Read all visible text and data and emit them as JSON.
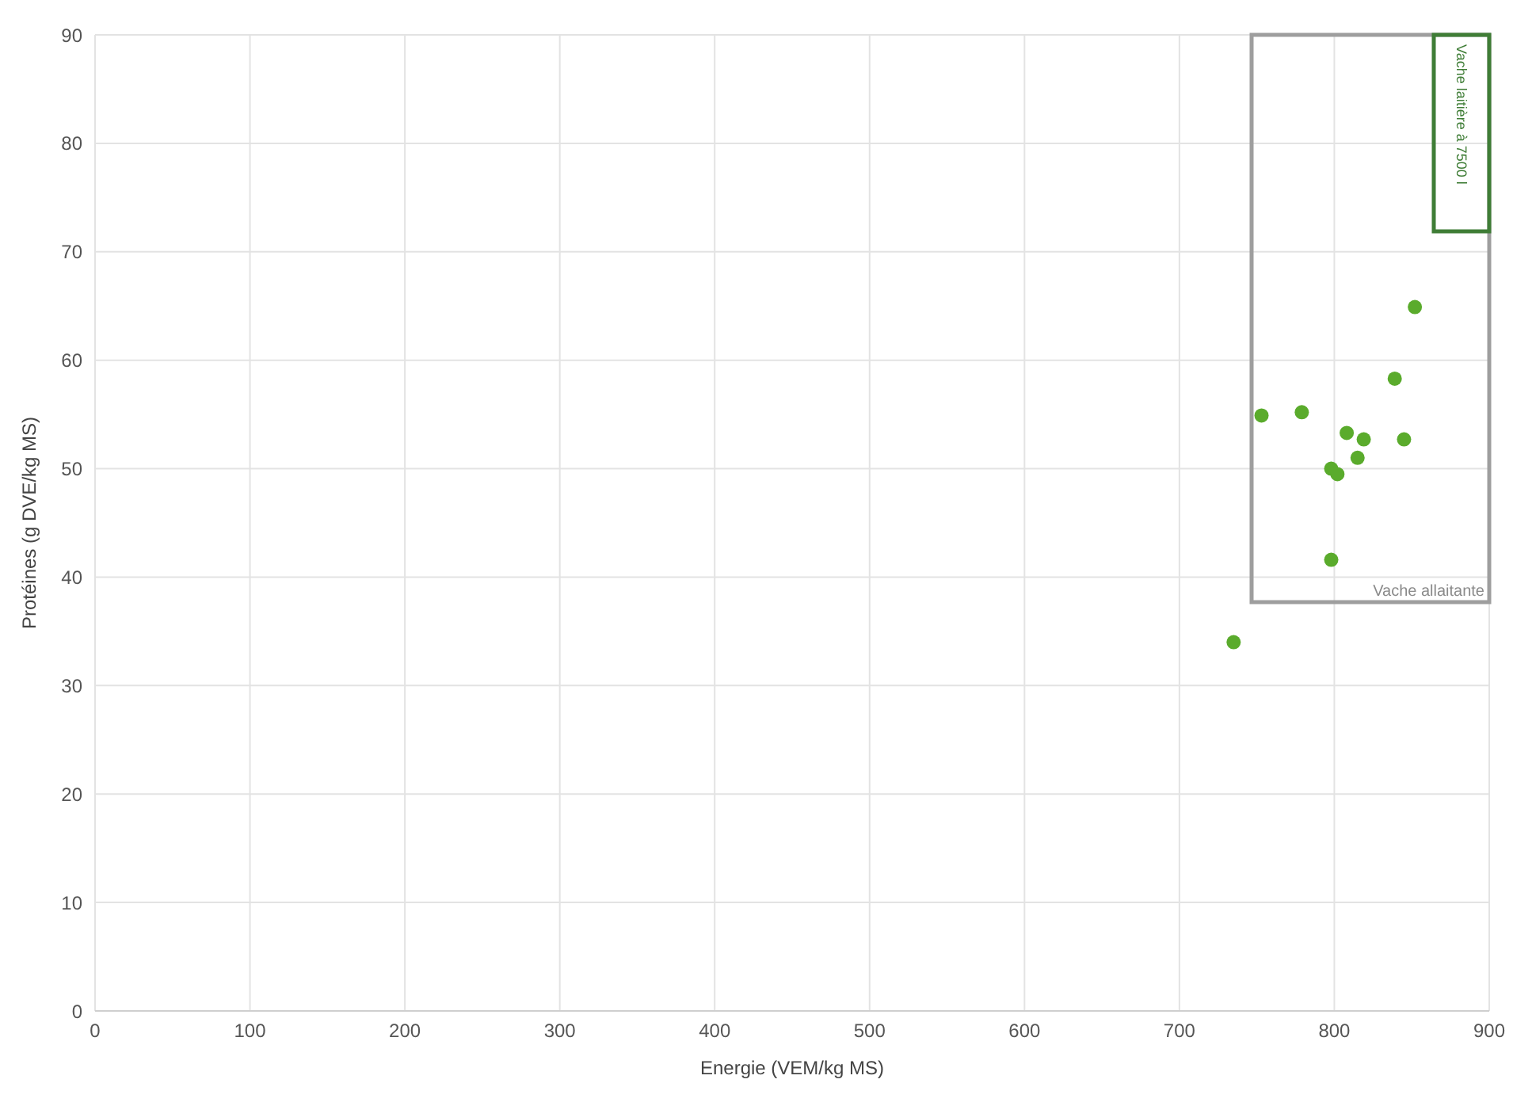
{
  "chart_data": {
    "type": "scatter",
    "xlabel": "Energie  (VEM/kg MS)",
    "ylabel": "Protéines (g DVE/kg MS)",
    "x": [
      735,
      753,
      779,
      798,
      802,
      798,
      808,
      815,
      819,
      839,
      845,
      852
    ],
    "series": [
      {
        "color": "#5aab2c",
        "values": [
          34.0,
          54.9,
          55.2,
          50.0,
          49.5,
          41.6,
          53.3,
          51.0,
          52.7,
          58.3,
          52.7,
          64.9
        ]
      }
    ],
    "xlim": [
      0,
      900
    ],
    "xticks": [
      0,
      100,
      200,
      300,
      400,
      500,
      600,
      700,
      800,
      900
    ],
    "ylim": [
      0,
      90
    ],
    "yticks": [
      0,
      10,
      20,
      30,
      40,
      50,
      60,
      70,
      80,
      90
    ],
    "grid": true,
    "legend": false,
    "marker": "circle",
    "annotations": [
      "Vache allaitante",
      "Vache laitière à 7500 l"
    ]
  }
}
